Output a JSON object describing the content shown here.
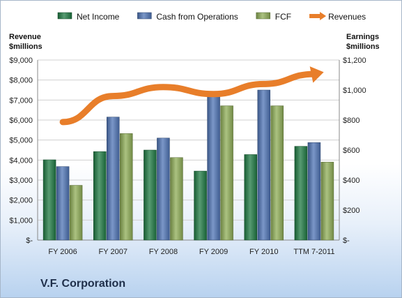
{
  "company_name": "V.F. Corporation",
  "chart_data": {
    "type": "bar",
    "categories": [
      "FY 2006",
      "FY 2007",
      "FY 2008",
      "FY 2009",
      "FY 2010",
      "TTM 7-2011"
    ],
    "left_axis": {
      "label_line1": "Revenue",
      "label_line2": "$millions",
      "ylim": [
        0,
        9000
      ],
      "ticks": [
        0,
        1000,
        2000,
        3000,
        4000,
        5000,
        6000,
        7000,
        8000,
        9000
      ],
      "tick_labels": [
        "$-",
        "$1,000",
        "$2,000",
        "$3,000",
        "$4,000",
        "$5,000",
        "$6,000",
        "$7,000",
        "$8,000",
        "$9,000"
      ]
    },
    "right_axis": {
      "label_line1": "Earnings",
      "label_line2": "$millions",
      "ylim": [
        0,
        1200
      ],
      "ticks": [
        0,
        200,
        400,
        600,
        800,
        1000,
        1200
      ],
      "tick_labels": [
        "$-",
        "$200",
        "$400",
        "$600",
        "$800",
        "$1,000",
        "$1,200"
      ]
    },
    "series": [
      {
        "name": "Net Income",
        "axis": "right",
        "kind": "bar",
        "color": "#1f7a43",
        "values": [
          535,
          590,
          600,
          460,
          570,
          625
        ]
      },
      {
        "name": "Cash from Operations",
        "axis": "right",
        "kind": "bar",
        "color": "#4f74b5",
        "values": [
          490,
          820,
          680,
          980,
          1000,
          650
        ]
      },
      {
        "name": "FCF",
        "axis": "right",
        "kind": "bar",
        "color": "#8fad57",
        "values": [
          365,
          710,
          550,
          895,
          895,
          520
        ]
      },
      {
        "name": "Revenues",
        "axis": "left",
        "kind": "line",
        "color": "#e87e2a",
        "values": [
          5900,
          7200,
          7650,
          7300,
          7800,
          8300
        ]
      }
    ],
    "legend_position": "top",
    "grid": true
  }
}
